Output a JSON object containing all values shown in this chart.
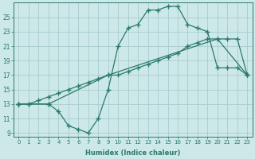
{
  "xlabel": "Humidex (Indice chaleur)",
  "bg_color": "#cde8e8",
  "grid_color": "#aacccc",
  "line_color": "#2a7a6a",
  "xlim": [
    -0.5,
    23.5
  ],
  "ylim": [
    8.5,
    27
  ],
  "xticks": [
    0,
    1,
    2,
    3,
    4,
    5,
    6,
    7,
    8,
    9,
    10,
    11,
    12,
    13,
    14,
    15,
    16,
    17,
    18,
    19,
    20,
    21,
    22,
    23
  ],
  "yticks": [
    9,
    11,
    13,
    15,
    17,
    19,
    21,
    23,
    25
  ],
  "line1_x": [
    0,
    1,
    3,
    9,
    20,
    23
  ],
  "line1_y": [
    13,
    13,
    13,
    17,
    22,
    17
  ],
  "line2_x": [
    0,
    3,
    4,
    5,
    6,
    7,
    8,
    9,
    10,
    11,
    12,
    13,
    14,
    15,
    16,
    17,
    18,
    19,
    20,
    21,
    22,
    23
  ],
  "line2_y": [
    13,
    13,
    12,
    10,
    9.5,
    9,
    11,
    15,
    21,
    23.5,
    24,
    26,
    26,
    26.5,
    26.5,
    24,
    23.5,
    23,
    18,
    18,
    18,
    17
  ],
  "line3_x": [
    0,
    1,
    2,
    3,
    4,
    5,
    6,
    7,
    8,
    9,
    10,
    11,
    12,
    13,
    14,
    15,
    16,
    17,
    18,
    19,
    20,
    21,
    22,
    23
  ],
  "line3_y": [
    13,
    13,
    13.5,
    14,
    14.5,
    15,
    15.5,
    16,
    16.5,
    17,
    17,
    17.5,
    18,
    18.5,
    19,
    19.5,
    20,
    21,
    21.5,
    22,
    22,
    22,
    22,
    17
  ]
}
